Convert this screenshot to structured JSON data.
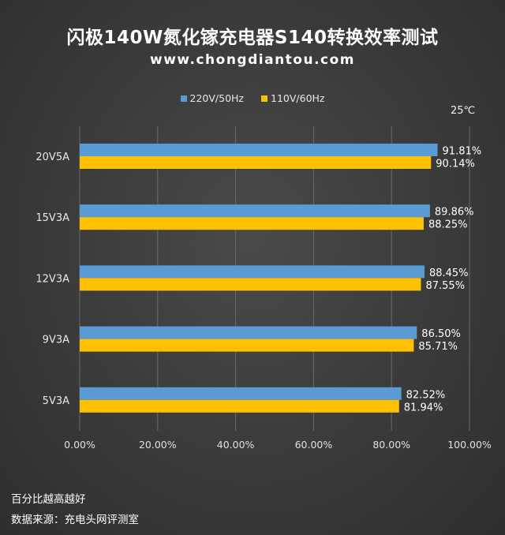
{
  "chart_data": {
    "type": "bar",
    "orientation": "horizontal",
    "title": "闪极140W氮化镓充电器S140转换效率测试",
    "subtitle": "www.chongdiantou.com",
    "categories": [
      "20V5A",
      "15V3A",
      "12V3A",
      "9V3A",
      "5V3A"
    ],
    "series": [
      {
        "name": "220V/50Hz",
        "color": "#5b9bd5",
        "values": [
          91.81,
          89.86,
          88.45,
          86.5,
          82.52
        ],
        "labels": [
          "91.81%",
          "89.86%",
          "88.45%",
          "86.50%",
          "82.52%"
        ]
      },
      {
        "name": "110V/60Hz",
        "color": "#ffc000",
        "values": [
          90.14,
          88.25,
          87.55,
          85.71,
          81.94
        ],
        "labels": [
          "90.14%",
          "88.25%",
          "87.55%",
          "85.71%",
          "81.94%"
        ]
      }
    ],
    "xlim": [
      0,
      100
    ],
    "xticks": [
      "0.00%",
      "20.00%",
      "40.00%",
      "60.00%",
      "80.00%",
      "100.00%"
    ],
    "grid": true,
    "legend_position": "top"
  },
  "annotation": {
    "temperature": "25℃"
  },
  "notes": {
    "line1": "百分比越高越好",
    "line2": "数据来源：充电头网评测室"
  },
  "colors": {
    "background": "#3a3a3a",
    "grid": "#6a6a6a",
    "text": "#ffffff"
  }
}
